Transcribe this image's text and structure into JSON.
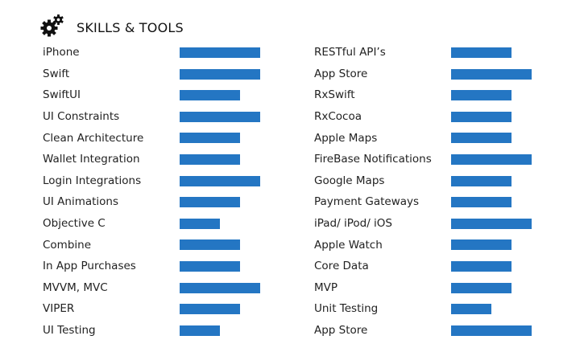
{
  "header": {
    "title": "SKILLS & TOOLS",
    "icon": "gears-icon"
  },
  "accent_color": "#2476c3",
  "skills_left": [
    {
      "label": "iPhone",
      "level": 1.0
    },
    {
      "label": "Swift",
      "level": 1.0
    },
    {
      "label": "SwiftUI",
      "level": 0.75
    },
    {
      "label": "UI Constraints",
      "level": 1.0
    },
    {
      "label": "Clean Architecture",
      "level": 0.75
    },
    {
      "label": "Wallet Integration",
      "level": 0.75
    },
    {
      "label": "Login Integrations",
      "level": 1.0
    },
    {
      "label": "UI Animations",
      "level": 0.75
    },
    {
      "label": "Objective C",
      "level": 0.5
    },
    {
      "label": "Combine",
      "level": 0.75
    },
    {
      "label": "In App Purchases",
      "level": 0.75
    },
    {
      "label": "MVVM, MVC",
      "level": 1.0
    },
    {
      "label": "VIPER",
      "level": 0.75
    },
    {
      "label": "UI Testing",
      "level": 0.5
    }
  ],
  "skills_right": [
    {
      "label": "RESTful API’s",
      "level": 0.75
    },
    {
      "label": "App Store",
      "level": 1.0
    },
    {
      "label": "RxSwift",
      "level": 0.75
    },
    {
      "label": "RxCocoa",
      "level": 0.75
    },
    {
      "label": "Apple Maps",
      "level": 0.75
    },
    {
      "label": "FireBase Notifications",
      "level": 1.0
    },
    {
      "label": "Google Maps",
      "level": 0.75
    },
    {
      "label": "Payment Gateways",
      "level": 0.75
    },
    {
      "label": "iPad/ iPod/ iOS",
      "level": 1.0
    },
    {
      "label": "Apple Watch",
      "level": 0.75
    },
    {
      "label": "Core Data",
      "level": 0.75
    },
    {
      "label": "MVP",
      "level": 0.75
    },
    {
      "label": "Unit Testing",
      "level": 0.5
    },
    {
      "label": "App Store",
      "level": 1.0
    }
  ]
}
